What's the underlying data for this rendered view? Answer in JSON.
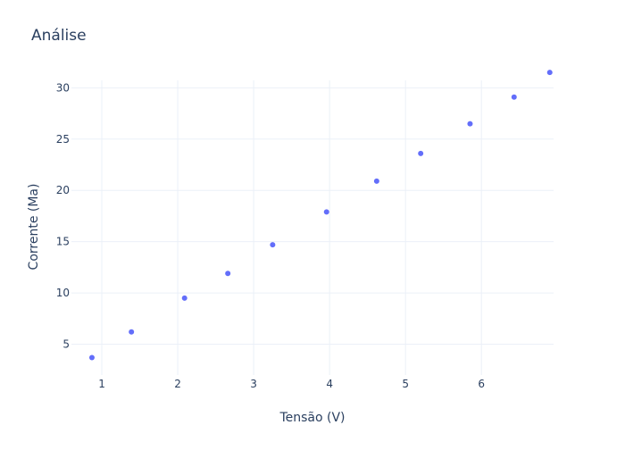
{
  "chart_data": {
    "type": "scatter",
    "title": "Análise",
    "xlabel": "Tensão (V)",
    "ylabel": "Corrente (Ma)",
    "xlim": [
      0.6,
      6.95
    ],
    "ylim": [
      2.0,
      31.6
    ],
    "x_ticks": [
      1,
      2,
      3,
      4,
      5,
      6
    ],
    "y_ticks": [
      5,
      10,
      15,
      20,
      25,
      30
    ],
    "grid": true,
    "marker_color": "#636efa",
    "series": [
      {
        "x": [
          0.87,
          1.39,
          2.09,
          2.66,
          3.25,
          3.96,
          4.62,
          5.2,
          5.85,
          6.43,
          6.9
        ],
        "y": [
          3.7,
          6.2,
          9.5,
          11.9,
          14.7,
          17.9,
          20.9,
          23.6,
          26.5,
          29.1,
          31.5
        ]
      }
    ]
  }
}
